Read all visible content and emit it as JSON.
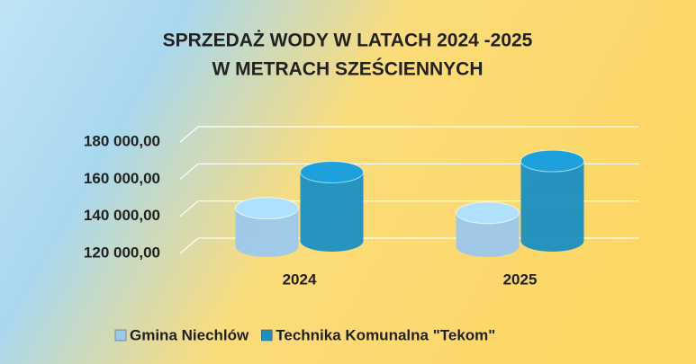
{
  "chart_data": {
    "type": "bar",
    "title": [
      "SPRZEDAŻ WODY W LATACH 2024 -2025",
      "W METRACH SZEŚCIENNYCH"
    ],
    "categories": [
      "2024",
      "2025"
    ],
    "series": [
      {
        "name": "Gmina Niechlów",
        "color": "#9cc8ec",
        "values": [
          140500,
          138000
        ]
      },
      {
        "name": "Technika Komunalna \"Tekom\"",
        "color": "#1a8fc4",
        "values": [
          157000,
          163000
        ]
      }
    ],
    "ylim": [
      120000,
      180000
    ],
    "yticks": [
      {
        "value": 120000,
        "label": "120 000,00"
      },
      {
        "value": 140000,
        "label": "140 000,00"
      },
      {
        "value": 160000,
        "label": "160 000,00"
      },
      {
        "value": 180000,
        "label": "180 000,00"
      }
    ],
    "grid": true,
    "legend": "bottom"
  }
}
